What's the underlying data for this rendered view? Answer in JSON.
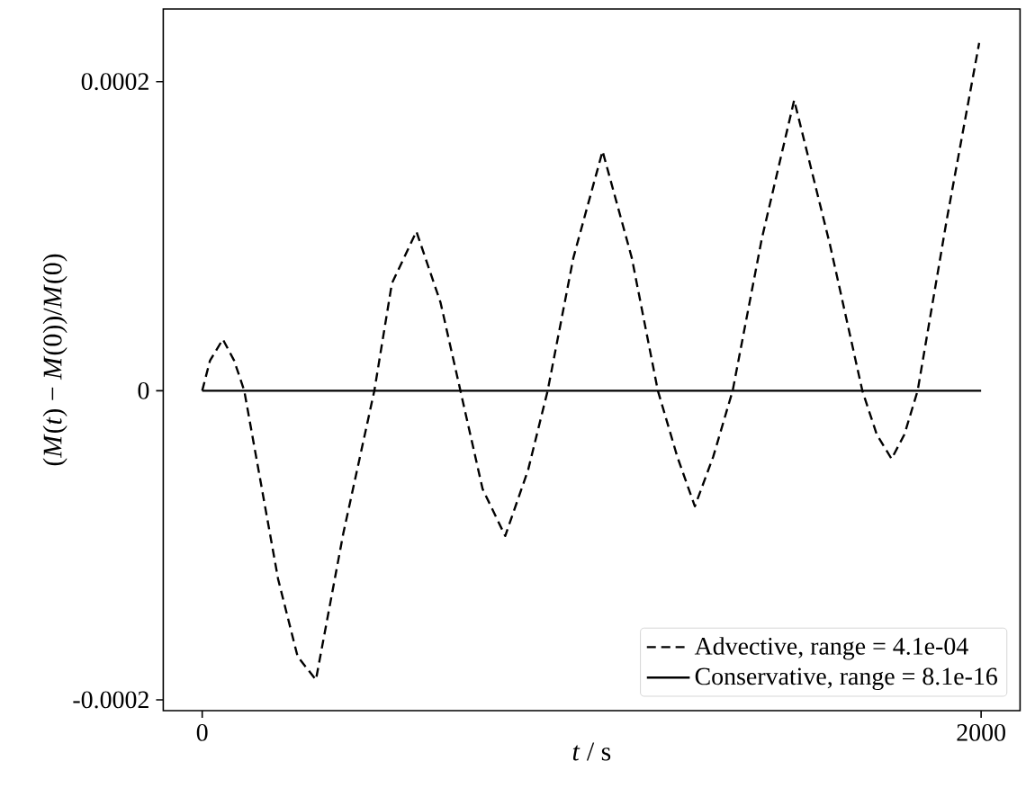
{
  "chart_data": {
    "type": "line",
    "xlabel": "*t* / s",
    "ylabel": "(*M*(*t*) − *M*(0))/*M*(0)",
    "xlim": [
      -100,
      2100
    ],
    "ylim": [
      -0.000207,
      0.000247
    ],
    "xticks": [
      0,
      2000
    ],
    "yticks": [
      -0.0002,
      0,
      0.0002
    ],
    "legend": "bottom right",
    "series": [
      {
        "name": "Advective, range = 4.1e-04",
        "color": "#000000",
        "line_style": "dashed",
        "x": [
          0,
          20,
          53,
          82,
          108,
          195,
          245,
          292,
          362,
          442,
          487,
          550,
          612,
          663,
          720,
          778,
          837,
          887,
          953,
          1028,
          1103,
          1170,
          1220,
          1265,
          1312,
          1362,
          1437,
          1520,
          1612,
          1695,
          1732,
          1770,
          1803,
          1837,
          1912,
          1995
        ],
        "values": [
          0,
          1.95e-05,
          3.33e-05,
          1.95e-05,
          0,
          -0.000122,
          -0.000172,
          -0.000187,
          -9.27e-05,
          0,
          6.94e-05,
          0.000103,
          5.7e-05,
          0,
          -6.36e-05,
          -9.4e-05,
          -5.11e-05,
          0,
          8.6e-05,
          0.000155,
          8.6e-05,
          0,
          -4.28e-05,
          -7.48e-05,
          -4.28e-05,
          0,
          9.85e-05,
          0.000188,
          9.44e-05,
          0,
          -2.83e-05,
          -4.41e-05,
          -2.83e-05,
          0,
          0.000111,
          0.000225
        ]
      },
      {
        "name": "Conservative, range = 8.1e-16",
        "color": "#000000",
        "line_style": "solid",
        "x": [
          0,
          2000
        ],
        "values": [
          0,
          0
        ]
      }
    ]
  }
}
